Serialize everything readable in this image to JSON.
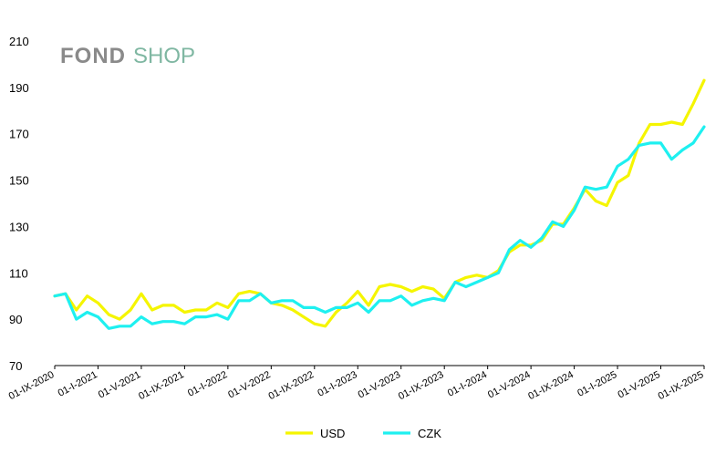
{
  "logo": {
    "part1": "FOND",
    "part2": "SHOP",
    "part2_color": "#7fb7a2",
    "part1_color": "#8a8a8a"
  },
  "chart_data": {
    "type": "line",
    "title": "",
    "xlabel": "",
    "ylabel": "",
    "ylim": [
      70,
      210
    ],
    "yticks": [
      70,
      90,
      110,
      130,
      150,
      170,
      190,
      210
    ],
    "grid": false,
    "legend_position": "bottom",
    "x_tick_labels": [
      "01-IX-2020",
      "01-I-2021",
      "01-V-2021",
      "01-IX-2021",
      "01-I-2022",
      "01-V-2022",
      "01-IX-2022",
      "01-I-2023",
      "01-V-2023",
      "01-IX-2023",
      "01-I-2024",
      "01-V-2024",
      "01-IX-2024",
      "01-I-2025",
      "01-V-2025",
      "01-IX-2025"
    ],
    "x_tick_index": [
      0,
      4,
      8,
      12,
      16,
      20,
      24,
      28,
      32,
      36,
      40,
      44,
      48,
      52,
      56,
      60
    ],
    "series": [
      {
        "name": "USD",
        "color": "#f5f500",
        "values": [
          100,
          101,
          94,
          100,
          97,
          92,
          90,
          94,
          101,
          94,
          96,
          96,
          93,
          94,
          94,
          97,
          95,
          101,
          102,
          101,
          97,
          96,
          94,
          91,
          88,
          87,
          93,
          97,
          102,
          96,
          104,
          105,
          104,
          102,
          104,
          103,
          99,
          106,
          108,
          109,
          108,
          111,
          119,
          122,
          122,
          124,
          131,
          131,
          138,
          146,
          141,
          139,
          149,
          152,
          166,
          174,
          174,
          175,
          174,
          183,
          193
        ]
      },
      {
        "name": "CZK",
        "color": "#1ef0f0",
        "values": [
          100,
          101,
          90,
          93,
          91,
          86,
          87,
          87,
          91,
          88,
          89,
          89,
          88,
          91,
          91,
          92,
          90,
          98,
          98,
          101,
          97,
          98,
          98,
          95,
          95,
          93,
          95,
          95,
          97,
          93,
          98,
          98,
          100,
          96,
          98,
          99,
          98,
          106,
          104,
          106,
          108,
          110,
          120,
          124,
          121,
          125,
          132,
          130,
          137,
          147,
          146,
          147,
          156,
          159,
          165,
          166,
          166,
          159,
          163,
          166,
          173
        ]
      }
    ]
  }
}
